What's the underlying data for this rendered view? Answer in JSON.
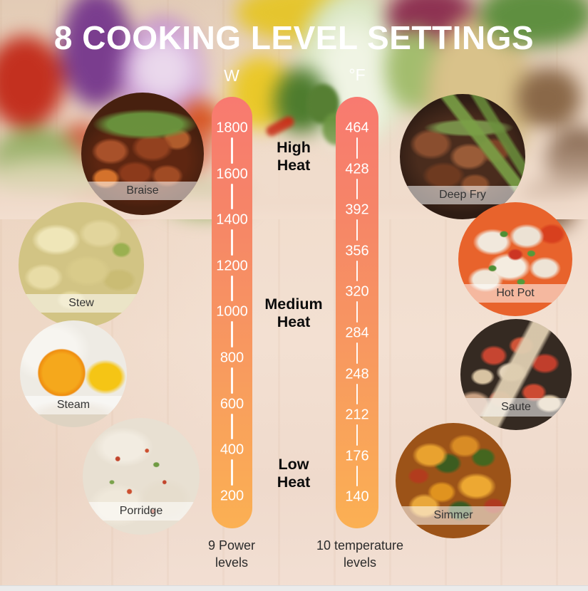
{
  "title": "8 COOKING LEVEL SETTINGS",
  "bars": [
    {
      "id": "power",
      "unit": "W",
      "values": [
        "1800",
        "1600",
        "1400",
        "1200",
        "1000",
        "800",
        "600",
        "400",
        "200"
      ],
      "caption_lines": [
        "9 Power",
        "levels"
      ]
    },
    {
      "id": "temperature",
      "unit": "°F",
      "values": [
        "464",
        "428",
        "392",
        "356",
        "320",
        "284",
        "248",
        "212",
        "176",
        "140"
      ],
      "caption_lines": [
        "10 temperature",
        "levels"
      ]
    }
  ],
  "heat_zones": [
    {
      "id": "high",
      "lines": [
        "High",
        "Heat"
      ]
    },
    {
      "id": "medium",
      "lines": [
        "Medium",
        "Heat"
      ]
    },
    {
      "id": "low",
      "lines": [
        "Low",
        "Heat"
      ]
    }
  ],
  "foods": [
    {
      "id": "braise",
      "label": "Braise"
    },
    {
      "id": "stew",
      "label": "Stew"
    },
    {
      "id": "steam",
      "label": "Steam"
    },
    {
      "id": "porridge",
      "label": "Porridge"
    },
    {
      "id": "deep-fry",
      "label": "Deep Fry"
    },
    {
      "id": "hot-pot",
      "label": "Hot Pot"
    },
    {
      "id": "saute",
      "label": "Saute"
    },
    {
      "id": "simmer",
      "label": "Simmer"
    }
  ],
  "colors": {
    "bar_gradient_top": "#f87a70",
    "bar_gradient_mid": "#f79362",
    "bar_gradient_bottom": "#fbb053",
    "tick_text": "#ffffff",
    "heat_label_text": "#0c0c0c",
    "caption_text": "#2b2b2b",
    "title_text": "#ffffff",
    "wood_background": "#f1ddcd"
  }
}
